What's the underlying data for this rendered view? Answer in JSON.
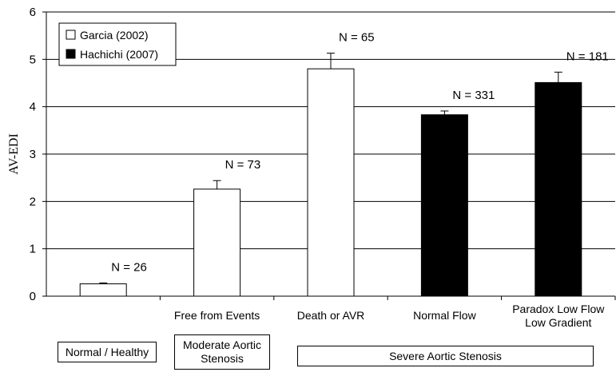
{
  "chart_data": {
    "type": "bar",
    "title": "",
    "xlabel": "",
    "ylabel": "AV-EDI",
    "ylim": [
      0,
      6
    ],
    "yticks": [
      0,
      1,
      2,
      3,
      4,
      5,
      6
    ],
    "grid": true,
    "legend_position": "top-left",
    "legend": [
      {
        "name": "Garcia (2002)",
        "fill": "#ffffff"
      },
      {
        "name": "Hachichi (2007)",
        "fill": "#000000"
      }
    ],
    "bars": [
      {
        "category": "",
        "value": 0.26,
        "error": 0.02,
        "n_label": "N = 26",
        "series": 0
      },
      {
        "category": "Free from Events",
        "value": 2.26,
        "error": 0.18,
        "n_label": "N = 73",
        "series": 0
      },
      {
        "category": "Death or AVR",
        "value": 4.8,
        "error": 0.33,
        "n_label": "N = 65",
        "series": 0
      },
      {
        "category": "Normal Flow",
        "value": 3.83,
        "error": 0.08,
        "n_label": "N = 331",
        "series": 1
      },
      {
        "category": "Paradox Low Flow\nLow Gradient",
        "value": 4.51,
        "error": 0.22,
        "n_label": "N = 181",
        "series": 1
      }
    ],
    "groups": [
      {
        "label": "Normal / Healthy"
      },
      {
        "label": "Moderate Aortic Stenosis"
      },
      {
        "label": "Severe Aortic Stenosis"
      }
    ]
  }
}
